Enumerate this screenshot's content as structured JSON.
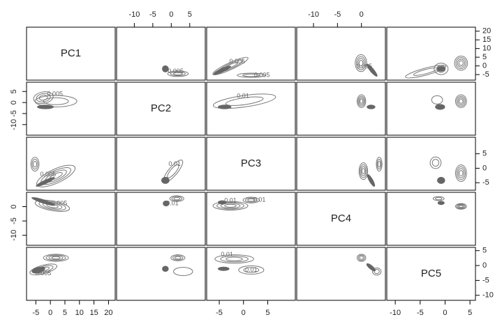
{
  "chart_data": {
    "type": "pairs",
    "axes": [
      {
        "name": "PC1",
        "lim": [
          -8.2,
          22.3
        ],
        "ticks": [
          -5,
          0,
          5,
          10,
          15,
          20
        ]
      },
      {
        "name": "PC2",
        "lim": [
          -14.8,
          9.2
        ],
        "ticks": [
          -10,
          -5,
          0,
          5
        ]
      },
      {
        "name": "PC3",
        "lim": [
          -7.6,
          10.7
        ],
        "ticks": [
          -5,
          0,
          5
        ]
      },
      {
        "name": "PC4",
        "lim": [
          -13.5,
          5
        ],
        "ticks": [
          -10,
          -5,
          0
        ]
      },
      {
        "name": "PC5",
        "lim": [
          -11.7,
          6.1
        ],
        "ticks": [
          -10,
          -5,
          0,
          5
        ]
      }
    ],
    "color": "#777777",
    "blob_color": "#666666",
    "panels": [
      [
        null,
        {
          "contours": [
            {
              "center": [
                1.8,
                -4.5
              ],
              "radii": [
                2.8,
                1.6
              ],
              "angle": 0,
              "rings": 3
            }
          ],
          "blobs": [
            {
              "center": [
                -1.6,
                -1.7
              ],
              "radii": [
                0.9,
                2.0
              ],
              "angle": 0
            }
          ],
          "labels": [
            {
              "text": "0.005",
              "x": 1.2,
              "y": -3.2
            }
          ]
        },
        {
          "contours": [
            {
              "center": [
                -2.7,
                -0.1
              ],
              "radii": [
                4.0,
                2.0
              ],
              "angle": -25,
              "rings": 3
            },
            {
              "center": [
                1.6,
                -5.4
              ],
              "radii": [
                2.9,
                1.2
              ],
              "angle": 0,
              "rings": 2
            }
          ],
          "blobs": [
            {
              "center": [
                -4.4,
                -2.5
              ],
              "radii": [
                2.0,
                1.2
              ],
              "angle": -25
            }
          ],
          "labels": [
            {
              "text": "0.005",
              "x": -1.3,
              "y": 2.4
            },
            {
              "text": "0.005",
              "x": 3.8,
              "y": -5.4
            }
          ]
        },
        {
          "contours": [
            {
              "center": [
                -0.1,
                1.6
              ],
              "radii": [
                1.2,
                4.9
              ],
              "angle": 0,
              "rings": 4
            }
          ],
          "blobs": [
            {
              "center": [
                2.2,
                -2.5
              ],
              "radii": [
                1.7,
                1.2
              ],
              "angle": 50
            }
          ],
          "labels": [
            {
              "text": "0.005",
              "x": 0.6,
              "y": -0.5
            }
          ]
        },
        {
          "contours": [
            {
              "center": [
                3.2,
                1.6
              ],
              "radii": [
                1.3,
                4.1
              ],
              "angle": 0,
              "rings": 4
            },
            {
              "center": [
                -0.8,
                -1.7
              ],
              "radii": [
                1.4,
                3.3
              ],
              "angle": 0,
              "rings": 2
            },
            {
              "center": [
                -3.9,
                -3.3
              ],
              "radii": [
                4.2,
                2.0
              ],
              "angle": -15,
              "rings": 2
            }
          ],
          "blobs": [
            {
              "center": [
                -0.8,
                -1.7
              ],
              "radii": [
                0.8,
                1.6
              ],
              "angle": 0
            }
          ],
          "labels": []
        }
      ],
      [
        {
          "contours": [
            {
              "center": [
                -2.4,
                2.2
              ],
              "radii": [
                3.4,
                2.6
              ],
              "angle": -10,
              "rings": 3
            },
            {
              "center": [
                1.9,
                0.6
              ],
              "radii": [
                7.2,
                2.6
              ],
              "angle": 0,
              "rings": 2
            }
          ],
          "blobs": [
            {
              "center": [
                -1.7,
                -2.0
              ],
              "radii": [
                2.9,
                1.0
              ],
              "angle": 0
            }
          ],
          "labels": [
            {
              "text": "0.005",
              "x": 1.6,
              "y": 3.8
            }
          ]
        },
        null,
        {
          "contours": [
            {
              "center": [
                0.2,
                0.6
              ],
              "radii": [
                6.5,
                2.6
              ],
              "angle": -8,
              "rings": 2
            }
          ],
          "blobs": [
            {
              "center": [
                -3.9,
                -2.0
              ],
              "radii": [
                1.4,
                1.0
              ],
              "angle": 0
            }
          ],
          "labels": [
            {
              "text": "0.01",
              "x": -0.1,
              "y": 2.8
            }
          ]
        },
        {
          "contours": [
            {
              "center": [
                0.0,
                0.6
              ],
              "radii": [
                0.9,
                2.9
              ],
              "angle": 0,
              "rings": 4
            }
          ],
          "blobs": [
            {
              "center": [
                2.0,
                -2.0
              ],
              "radii": [
                0.9,
                1.0
              ],
              "angle": 0
            }
          ],
          "labels": []
        },
        {
          "contours": [
            {
              "center": [
                3.2,
                0.6
              ],
              "radii": [
                1.1,
                2.9
              ],
              "angle": 0,
              "rings": 4
            },
            {
              "center": [
                -1.6,
                1.2
              ],
              "radii": [
                1.1,
                1.9
              ],
              "angle": 0,
              "rings": 1
            }
          ],
          "blobs": [
            {
              "center": [
                -1.0,
                -2.0
              ],
              "radii": [
                1.0,
                1.3
              ],
              "angle": 0
            }
          ],
          "labels": []
        }
      ],
      [
        {
          "contours": [
            {
              "center": [
                -5.3,
                1.4
              ],
              "radii": [
                1.4,
                2.4
              ],
              "angle": 0,
              "rings": 3
            },
            {
              "center": [
                1.9,
                -2.7
              ],
              "radii": [
                7.2,
                2.4
              ],
              "angle": -25,
              "rings": 4
            }
          ],
          "blobs": [
            {
              "center": [
                -1.7,
                -4.7
              ],
              "radii": [
                3.6,
                0.7
              ],
              "angle": -25
            }
          ],
          "labels": [
            {
              "text": "0.005",
              "x": -0.8,
              "y": -2.2
            }
          ]
        },
        {
          "contours": [
            {
              "center": [
                0.5,
                -1.0
              ],
              "radii": [
                3.8,
                1.5
              ],
              "angle": -50,
              "rings": 2
            }
          ],
          "blobs": [
            {
              "center": [
                -1.6,
                -4.2
              ],
              "radii": [
                1.1,
                1.2
              ],
              "angle": 0
            }
          ],
          "labels": [
            {
              "text": "0.01",
              "x": 0.9,
              "y": 1.4
            }
          ]
        },
        null,
        {
          "contours": [
            {
              "center": [
                0.4,
                -1.0
              ],
              "radii": [
                0.9,
                2.9
              ],
              "angle": 0,
              "rings": 4
            },
            {
              "center": [
                3.7,
                1.4
              ],
              "radii": [
                0.6,
                2.4
              ],
              "angle": 0,
              "rings": 3
            }
          ],
          "blobs": [
            {
              "center": [
                2.0,
                -4.2
              ],
              "radii": [
                1.5,
                0.7
              ],
              "angle": 60
            }
          ],
          "labels": []
        },
        {
          "contours": [
            {
              "center": [
                3.2,
                -1.7
              ],
              "radii": [
                1.1,
                2.9
              ],
              "angle": 0,
              "rings": 4
            },
            {
              "center": [
                -1.9,
                1.9
              ],
              "radii": [
                1.1,
                2.0
              ],
              "angle": 0,
              "rings": 2
            }
          ],
          "blobs": [
            {
              "center": [
                -0.8,
                -4.2
              ],
              "radii": [
                0.8,
                1.2
              ],
              "angle": 0
            }
          ],
          "labels": []
        }
      ],
      [
        {
          "contours": [
            {
              "center": [
                0.7,
                0.3
              ],
              "radii": [
                6.0,
                1.7
              ],
              "angle": 10,
              "rings": 4
            }
          ],
          "blobs": [
            {
              "center": [
                -2.4,
                1.8
              ],
              "radii": [
                4.3,
                0.7
              ],
              "angle": 18
            }
          ],
          "labels": [
            {
              "text": "0.005",
              "x": 3.1,
              "y": 1.1
            }
          ]
        },
        {
          "contours": [
            {
              "center": [
                1.5,
                2.8
              ],
              "radii": [
                1.9,
                1.0
              ],
              "angle": 0,
              "rings": 3
            }
          ],
          "blobs": [
            {
              "center": [
                -1.4,
                1.1
              ],
              "radii": [
                0.9,
                1.0
              ],
              "angle": 0
            }
          ],
          "labels": [
            {
              "text": "0.01",
              "x": 0.3,
              "y": 1.1
            }
          ]
        },
        {
          "contours": [
            {
              "center": [
                -2.7,
                0.3
              ],
              "radii": [
                3.6,
                1.5
              ],
              "angle": 0,
              "rings": 4
            },
            {
              "center": [
                1.6,
                2.3
              ],
              "radii": [
                1.7,
                1.0
              ],
              "angle": 0,
              "rings": 3
            }
          ],
          "blobs": [
            {
              "center": [
                -4.4,
                1.5
              ],
              "radii": [
                0.9,
                0.7
              ],
              "angle": 0
            }
          ],
          "labels": [
            {
              "text": "0.01",
              "x": -2.7,
              "y": 2.0
            },
            {
              "text": "0.01",
              "x": 3.3,
              "y": 2.3
            }
          ]
        },
        null,
        {
          "contours": [
            {
              "center": [
                3.2,
                0.1
              ],
              "radii": [
                1.1,
                1.0
              ],
              "angle": 0,
              "rings": 4
            },
            {
              "center": [
                -1.3,
                2.8
              ],
              "radii": [
                1.1,
                0.7
              ],
              "angle": 0,
              "rings": 2
            }
          ],
          "blobs": [
            {
              "center": [
                -0.8,
                1.3
              ],
              "radii": [
                0.7,
                0.7
              ],
              "angle": 0
            }
          ],
          "labels": []
        }
      ],
      [
        {
          "contours": [
            {
              "center": [
                1.9,
                2.6
              ],
              "radii": [
                4.3,
                1.2
              ],
              "angle": 0,
              "rings": 4
            },
            {
              "center": [
                -2.4,
                -1.3
              ],
              "radii": [
                4.8,
                1.4
              ],
              "angle": -15,
              "rings": 3
            }
          ],
          "blobs": [
            {
              "center": [
                -4.1,
                -1.5
              ],
              "radii": [
                2.4,
                1.0
              ],
              "angle": -15
            }
          ],
          "labels": [
            {
              "text": "0.005",
              "x": -2.4,
              "y": -2.7
            }
          ]
        },
        {
          "contours": [
            {
              "center": [
                1.8,
                2.6
              ],
              "radii": [
                1.9,
                1.0
              ],
              "angle": 0,
              "rings": 3
            },
            {
              "center": [
                3.2,
                -2.0
              ],
              "radii": [
                2.6,
                1.4
              ],
              "angle": 0,
              "rings": 1
            }
          ],
          "blobs": [
            {
              "center": [
                -1.6,
                -1.1
              ],
              "radii": [
                0.9,
                1.0
              ],
              "angle": 0
            }
          ],
          "labels": []
        },
        {
          "contours": [
            {
              "center": [
                -1.9,
                2.2
              ],
              "radii": [
                4.0,
                1.4
              ],
              "angle": 0,
              "rings": 3
            },
            {
              "center": [
                1.6,
                -1.5
              ],
              "radii": [
                2.6,
                1.4
              ],
              "angle": 0,
              "rings": 2
            }
          ],
          "blobs": [
            {
              "center": [
                -4.1,
                -1.1
              ],
              "radii": [
                1.2,
                0.7
              ],
              "angle": 0
            }
          ],
          "labels": [
            {
              "text": "0.01",
              "x": -3.4,
              "y": 3.6
            },
            {
              "text": "0.01",
              "x": 1.6,
              "y": -1.5
            }
          ]
        },
        {
          "contours": [
            {
              "center": [
                0.0,
                2.6
              ],
              "radii": [
                0.9,
                1.2
              ],
              "angle": 0,
              "rings": 3
            },
            {
              "center": [
                3.2,
                -2.0
              ],
              "radii": [
                0.9,
                1.2
              ],
              "angle": 0,
              "rings": 2
            }
          ],
          "blobs": [
            {
              "center": [
                2.0,
                -0.6
              ],
              "radii": [
                1.2,
                0.7
              ],
              "angle": 40
            }
          ],
          "labels": []
        },
        null
      ]
    ]
  }
}
